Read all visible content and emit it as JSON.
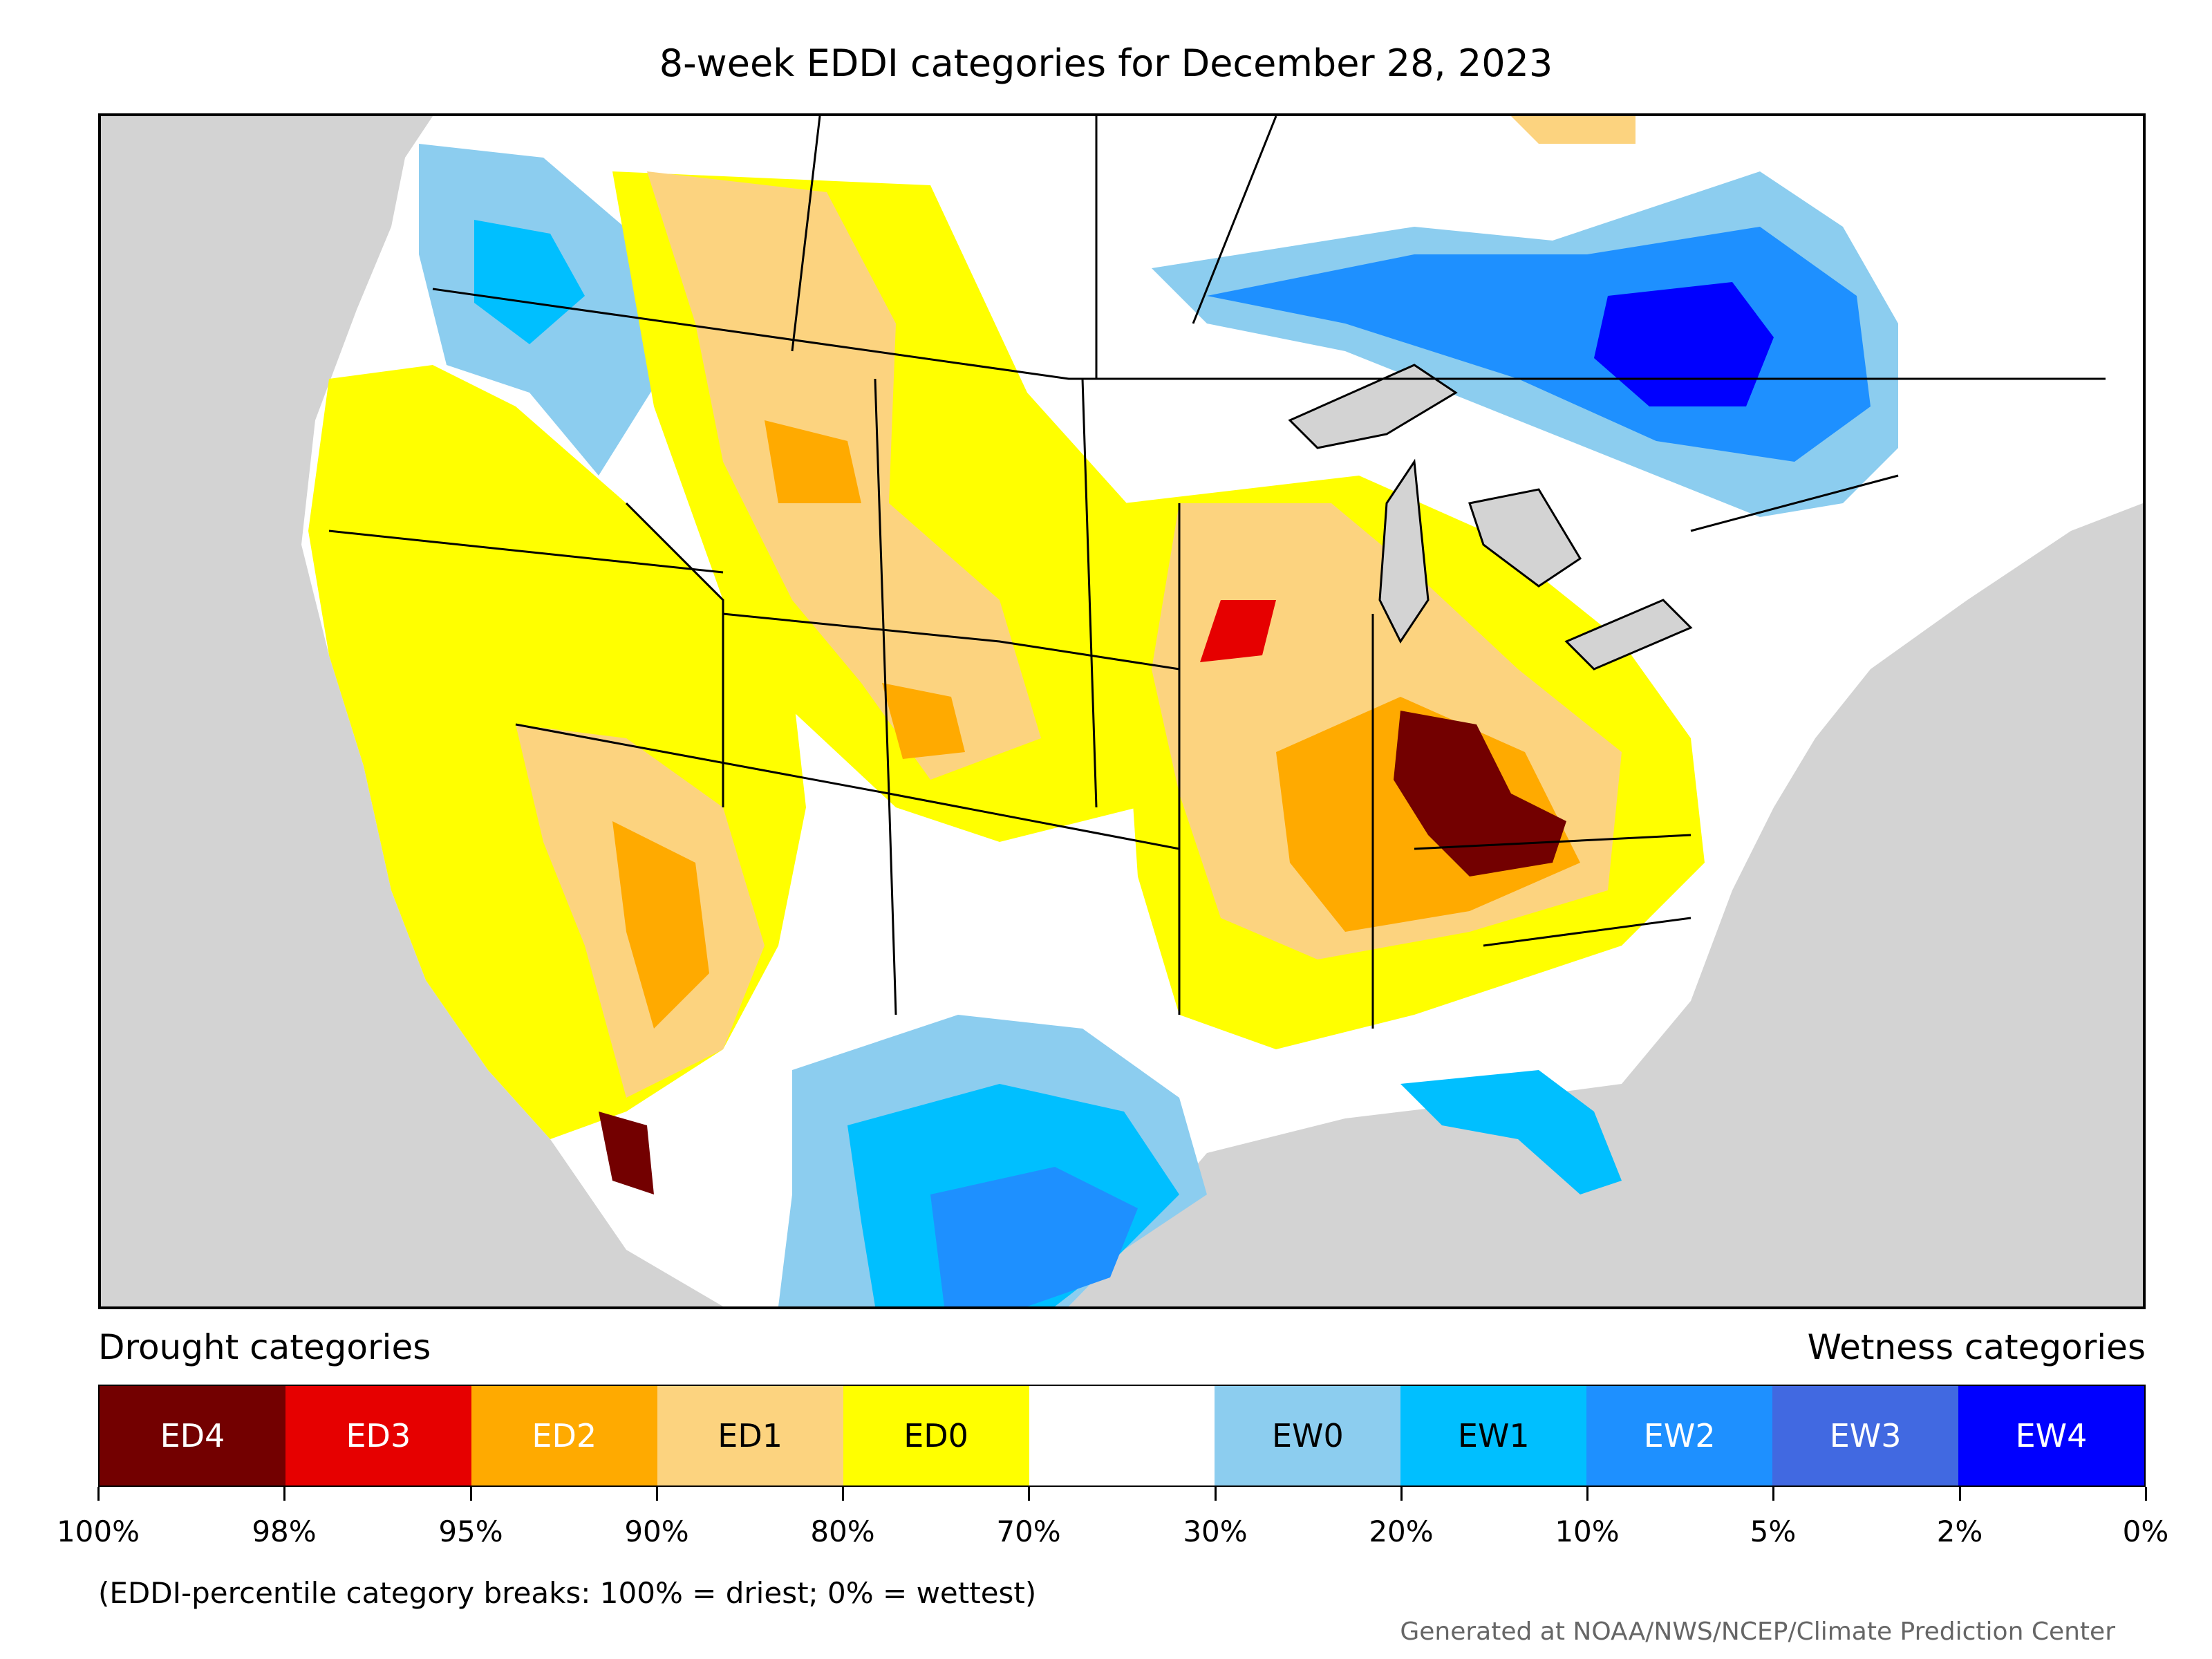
{
  "title": "8-week EDDI categories for December 28, 2023",
  "legend": {
    "drought_label": "Drought categories",
    "wetness_label": "Wetness categories",
    "categories": [
      {
        "label": "ED4",
        "color": "#730000",
        "text_color": "#ffffff"
      },
      {
        "label": "ED3",
        "color": "#e60000",
        "text_color": "#ffffff"
      },
      {
        "label": "ED2",
        "color": "#ffaa00",
        "text_color": "#ffffff"
      },
      {
        "label": "ED1",
        "color": "#fcd37f",
        "text_color": "#000000"
      },
      {
        "label": "ED0",
        "color": "#ffff00",
        "text_color": "#000000"
      },
      {
        "label": "",
        "color": "#ffffff",
        "text_color": "#000000"
      },
      {
        "label": "EW0",
        "color": "#8ccdef",
        "text_color": "#000000"
      },
      {
        "label": "EW1",
        "color": "#00bfff",
        "text_color": "#000000"
      },
      {
        "label": "EW2",
        "color": "#1e90ff",
        "text_color": "#ffffff"
      },
      {
        "label": "EW3",
        "color": "#4169e1",
        "text_color": "#ffffff"
      },
      {
        "label": "EW4",
        "color": "#0000ff",
        "text_color": "#ffffff"
      }
    ],
    "breaks": [
      "100%",
      "98%",
      "95%",
      "90%",
      "80%",
      "70%",
      "30%",
      "20%",
      "10%",
      "5%",
      "2%",
      "0%"
    ]
  },
  "footnote": "(EDDI-percentile category breaks: 100% = driest; 0% = wettest)",
  "credit": "Generated at NOAA/NWS/NCEP/Climate Prediction Center"
}
